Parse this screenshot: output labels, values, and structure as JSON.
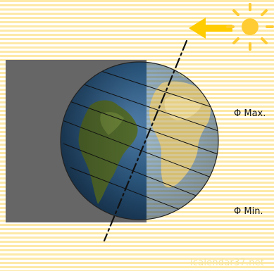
{
  "labels": {
    "phi_max": "Φ Max.",
    "phi_min": "Φ Min."
  },
  "watermark": "icalendar37.net",
  "colors": {
    "background": "#ffffff",
    "sunlight_stripe": "#fde9a8",
    "night_side": "#666666",
    "sun": "#ffcc33",
    "arrow": "#ffcc00",
    "axis": "#111111",
    "ocean": "#2f5f8a",
    "land": "#5e7a32",
    "terminator_shade": "#000000"
  },
  "icons": {
    "sun": "sun-icon",
    "arrow": "arrow-left-icon"
  }
}
